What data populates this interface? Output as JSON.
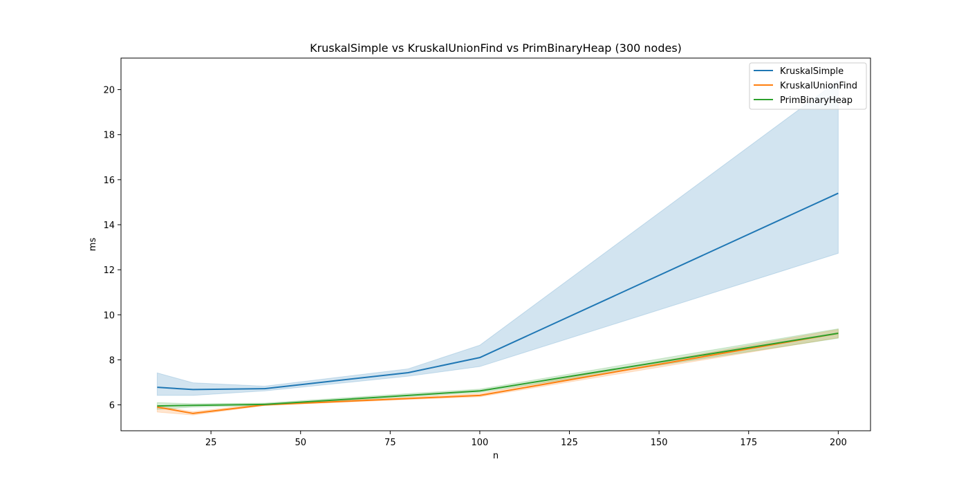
{
  "chart_data": {
    "type": "line",
    "title": "KruskalSimple vs KruskalUnionFind vs PrimBinaryHeap (300 nodes)",
    "xlabel": "n",
    "ylabel": "ms",
    "xlim": [
      -0.1,
      209
    ],
    "ylim": [
      4.85,
      21.4
    ],
    "xticks": [
      25,
      50,
      75,
      100,
      125,
      150,
      175,
      200
    ],
    "yticks": [
      6,
      8,
      10,
      12,
      14,
      16,
      18,
      20
    ],
    "legend_position": "top-right",
    "grid": false,
    "x": [
      10,
      20,
      40,
      80,
      100,
      200
    ],
    "series": [
      {
        "name": "KruskalSimple",
        "color": "#1f77b4",
        "values": [
          6.78,
          6.68,
          6.72,
          7.43,
          8.1,
          15.4
        ],
        "band_lower": [
          6.42,
          6.42,
          6.62,
          7.27,
          7.7,
          12.73
        ],
        "band_upper": [
          7.42,
          6.98,
          6.83,
          7.6,
          8.65,
          20.4
        ]
      },
      {
        "name": "KruskalUnionFind",
        "color": "#ff7f0e",
        "values": [
          5.9,
          5.62,
          6.0,
          6.28,
          6.42,
          9.18
        ],
        "band_lower": [
          5.68,
          5.55,
          5.97,
          6.24,
          6.36,
          8.98
        ],
        "band_upper": [
          5.95,
          5.7,
          6.05,
          6.33,
          6.5,
          9.35
        ]
      },
      {
        "name": "PrimBinaryHeap",
        "color": "#2ca02c",
        "values": [
          5.95,
          5.98,
          6.02,
          6.42,
          6.62,
          9.18
        ],
        "band_lower": [
          5.8,
          5.9,
          5.97,
          6.36,
          6.55,
          8.96
        ],
        "band_upper": [
          6.1,
          6.05,
          6.08,
          6.5,
          6.7,
          9.38
        ]
      }
    ]
  }
}
